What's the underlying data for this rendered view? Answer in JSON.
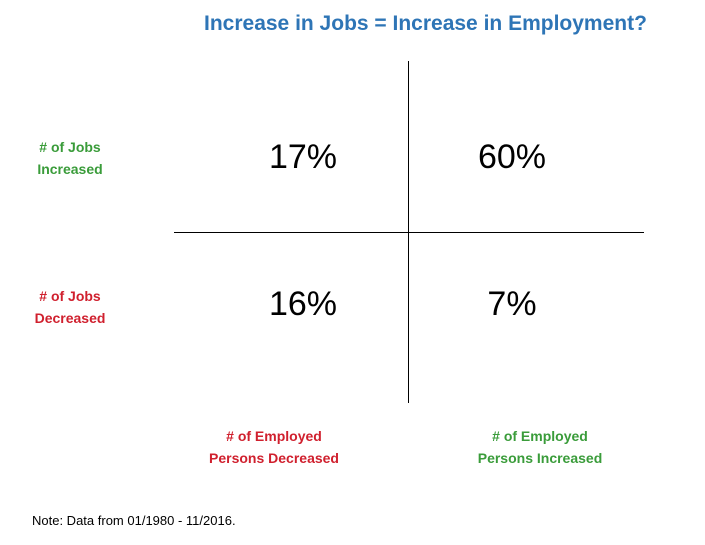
{
  "title": "Increase in Jobs = Increase in Employment?",
  "rows": [
    {
      "line1": "# of Jobs",
      "line2": "Increased"
    },
    {
      "line1": "# of Jobs",
      "line2": "Decreased"
    }
  ],
  "columns": [
    {
      "line1": "# of Employed",
      "line2": "Persons Decreased"
    },
    {
      "line1": "# of Employed",
      "line2": "Persons Increased"
    }
  ],
  "cells": {
    "jobs_up_employed_down": "17%",
    "jobs_up_employed_up": "60%",
    "jobs_down_employed_down": "16%",
    "jobs_down_employed_up": "7%"
  },
  "note": "Note: Data from 01/1980 - 11/2016.",
  "colors": {
    "title": "#2E75B6",
    "positive": "#3A9C3A",
    "negative": "#D0202E"
  }
}
